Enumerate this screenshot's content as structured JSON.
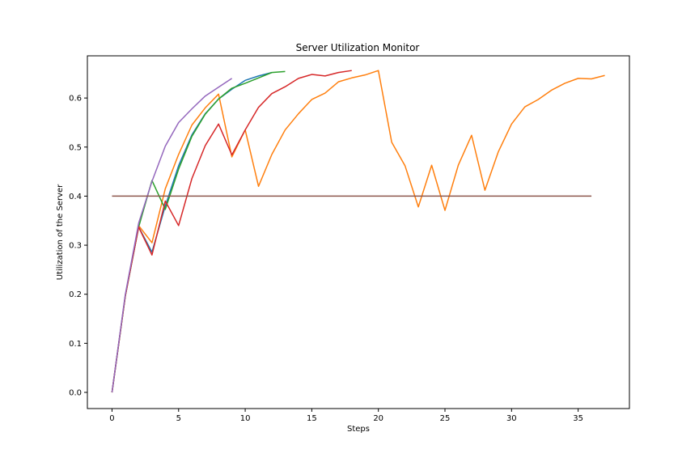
{
  "chart_data": {
    "type": "line",
    "title": "Server Utilization Monitor",
    "xlabel": "Steps",
    "ylabel": "Utilization of the Server",
    "xlim": [
      -1.85,
      38.85
    ],
    "ylim": [
      -0.033,
      0.686
    ],
    "xticks": [
      0,
      5,
      10,
      15,
      20,
      25,
      30,
      35
    ],
    "yticks": [
      0.0,
      0.1,
      0.2,
      0.3,
      0.4,
      0.5,
      0.6
    ],
    "ytick_labels": [
      "0.0",
      "0.1",
      "0.2",
      "0.3",
      "0.4",
      "0.5",
      "0.6"
    ],
    "grid": false,
    "legend": "none",
    "series": [
      {
        "color": "#1f77b4",
        "x": [
          0,
          1,
          2,
          3,
          4,
          5,
          6,
          7,
          8,
          9,
          10,
          11,
          12
        ],
        "y": [
          0.0,
          0.197,
          0.337,
          0.286,
          0.38,
          0.462,
          0.525,
          0.568,
          0.598,
          0.618,
          0.636,
          0.645,
          0.652
        ]
      },
      {
        "color": "#ff7f0e",
        "x": [
          0,
          1,
          2,
          3,
          4,
          5,
          6,
          7,
          8,
          9,
          10,
          11,
          12,
          13,
          14,
          15,
          16,
          17,
          18,
          19,
          20,
          21,
          22,
          23,
          24,
          25,
          26,
          27,
          28,
          29,
          30,
          31,
          32,
          33,
          34,
          35,
          36,
          37
        ],
        "y": [
          0.0,
          0.197,
          0.34,
          0.305,
          0.415,
          0.485,
          0.545,
          0.58,
          0.608,
          0.48,
          0.535,
          0.42,
          0.485,
          0.535,
          0.568,
          0.597,
          0.61,
          0.633,
          0.641,
          0.647,
          0.656,
          0.51,
          0.462,
          0.378,
          0.463,
          0.371,
          0.463,
          0.524,
          0.412,
          0.49,
          0.547,
          0.582,
          0.597,
          0.616,
          0.63,
          0.64,
          0.639,
          0.646
        ]
      },
      {
        "color": "#2ca02c",
        "x": [
          0,
          1,
          2,
          3,
          4,
          5,
          6,
          7,
          8,
          9,
          10,
          11,
          12,
          13
        ],
        "y": [
          0.0,
          0.197,
          0.337,
          0.432,
          0.373,
          0.455,
          0.522,
          0.567,
          0.598,
          0.62,
          0.63,
          0.641,
          0.652,
          0.654
        ]
      },
      {
        "color": "#d62728",
        "x": [
          0,
          1,
          2,
          3,
          4,
          5,
          6,
          7,
          8,
          9,
          10,
          11,
          12,
          13,
          14,
          15,
          16,
          17,
          18
        ],
        "y": [
          0.0,
          0.197,
          0.337,
          0.28,
          0.39,
          0.34,
          0.436,
          0.503,
          0.547,
          0.484,
          0.535,
          0.581,
          0.609,
          0.623,
          0.64,
          0.648,
          0.645,
          0.652,
          0.656
        ]
      },
      {
        "color": "#9467bd",
        "x": [
          0,
          1,
          2,
          3,
          4,
          5,
          6,
          7,
          8,
          9
        ],
        "y": [
          0.0,
          0.2,
          0.345,
          0.43,
          0.502,
          0.55,
          0.578,
          0.604,
          0.622,
          0.64
        ]
      },
      {
        "color": "#8c564b",
        "x": [
          0,
          36
        ],
        "y": [
          0.4,
          0.4
        ]
      }
    ]
  }
}
